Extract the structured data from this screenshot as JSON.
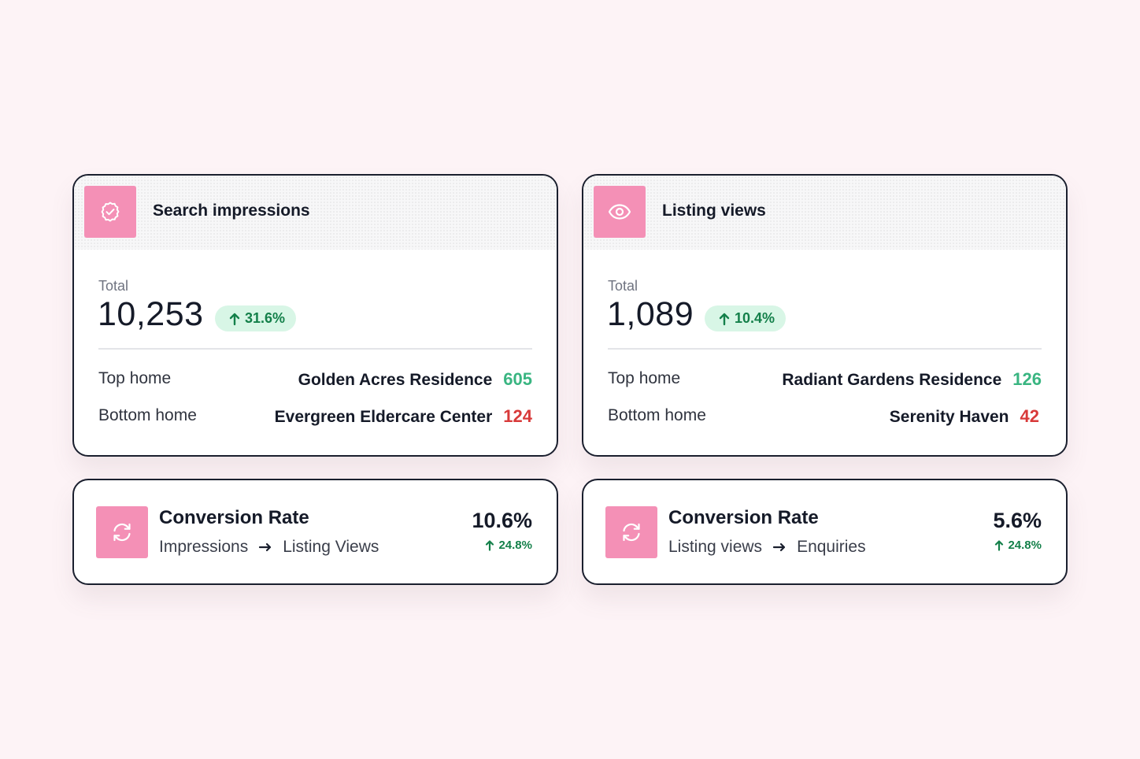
{
  "cards": [
    {
      "title": "Search impressions",
      "icon": "badge-check-icon",
      "total_label": "Total",
      "total_value": "10,253",
      "change": "31.6%",
      "top_label": "Top home",
      "top_name": "Golden Acres Residence",
      "top_value": "605",
      "bottom_label": "Bottom home",
      "bottom_name": "Evergreen Eldercare Center",
      "bottom_value": "124"
    },
    {
      "title": "Listing views",
      "icon": "eye-icon",
      "total_label": "Total",
      "total_value": "1,089",
      "change": "10.4%",
      "top_label": "Top home",
      "top_name": "Radiant Gardens Residence",
      "top_value": "126",
      "bottom_label": "Bottom home",
      "bottom_name": "Serenity Haven",
      "bottom_value": "42"
    }
  ],
  "conversions": [
    {
      "title": "Conversion Rate",
      "icon": "refresh-icon",
      "from": "Impressions",
      "to": "Listing Views",
      "value": "10.6%",
      "change": "24.8%"
    },
    {
      "title": "Conversion Rate",
      "icon": "refresh-icon",
      "from": "Listing views",
      "to": "Enquiries",
      "value": "5.6%",
      "change": "24.8%"
    }
  ],
  "colors": {
    "accent_pink": "#f490b6",
    "positive_green": "#39b581",
    "negative_red": "#d83a3a",
    "pill_bg": "#d8f6e6",
    "pill_text": "#14804a"
  }
}
